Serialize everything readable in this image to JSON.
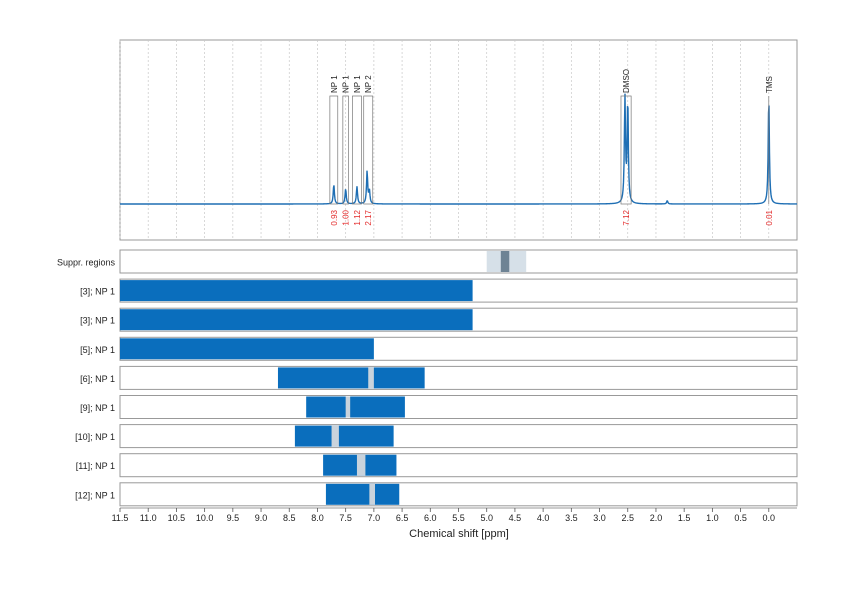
{
  "colors": {
    "spectrum": "#1f6fb4",
    "bar": "#0a6ebd",
    "integral": "#e32b2b",
    "suppr_light": "#d6e0e8",
    "suppr_dark": "#6e8394",
    "gap": "#c9d3dc",
    "frame": "#999999"
  },
  "chart_data": {
    "type": "nmr-spectrum-with-ranges",
    "xlabel": "Chemical shift [ppm]",
    "xlim": [
      11.5,
      -0.5
    ],
    "x_reversed": true,
    "ticks": [
      11.5,
      11.0,
      10.5,
      10.0,
      9.5,
      9.0,
      8.5,
      8.0,
      7.5,
      7.0,
      6.5,
      6.0,
      5.5,
      5.0,
      4.5,
      4.0,
      3.5,
      3.0,
      2.5,
      2.0,
      1.5,
      1.0,
      0.5,
      0.0
    ],
    "tick_labels": [
      "11.5",
      "11.0",
      "10.5",
      "10.0",
      "9.5",
      "9.0",
      "8.5",
      "8.0",
      "7.5",
      "7.0",
      "6.5",
      "6.0",
      "5.5",
      "5.0",
      "4.5",
      "4.0",
      "3.5",
      "3.0",
      "2.5",
      "2.0",
      "1.5",
      "1.0",
      "0.5",
      "0.0"
    ],
    "spectrum": {
      "peaks": [
        {
          "ppm": 7.71,
          "height": 0.18
        },
        {
          "ppm": 7.5,
          "height": 0.14
        },
        {
          "ppm": 7.3,
          "height": 0.16
        },
        {
          "ppm": 7.12,
          "height": 0.3
        },
        {
          "ppm": 7.08,
          "height": 0.12
        },
        {
          "ppm": 2.55,
          "height": 0.96
        },
        {
          "ppm": 2.5,
          "height": 0.94
        },
        {
          "ppm": 1.8,
          "height": 0.03
        },
        {
          "ppm": 0.0,
          "height": 0.98
        }
      ],
      "annotations": [
        {
          "label": "NP 1",
          "from": 7.78,
          "to": 7.64,
          "integral": "0.93"
        },
        {
          "label": "NP 1",
          "from": 7.55,
          "to": 7.45,
          "integral": "1.00"
        },
        {
          "label": "NP 1",
          "from": 7.38,
          "to": 7.22,
          "integral": "1.12"
        },
        {
          "label": "NP 2",
          "from": 7.18,
          "to": 7.02,
          "integral": "2.17"
        },
        {
          "label": "DMSO",
          "from": 2.62,
          "to": 2.44,
          "integral": "7.12"
        },
        {
          "label": "TMS",
          "from": 0.02,
          "to": -0.02,
          "integral": "0.01"
        }
      ]
    },
    "rows": [
      {
        "label": "Suppr. regions",
        "type": "suppression",
        "outer": [
          5.0,
          4.3
        ],
        "inner": [
          4.75,
          4.6
        ]
      },
      {
        "label": "[3]; NP 1",
        "type": "range",
        "from": 11.5,
        "to": 5.25,
        "gap": null
      },
      {
        "label": "[3]; NP 1",
        "type": "range",
        "from": 11.5,
        "to": 5.25,
        "gap": null
      },
      {
        "label": "[5]; NP 1",
        "type": "range",
        "from": 11.5,
        "to": 7.0,
        "gap": null
      },
      {
        "label": "[6]; NP 1",
        "type": "range",
        "from": 8.7,
        "to": 6.1,
        "gap": [
          7.1,
          7.0
        ]
      },
      {
        "label": "[9]; NP 1",
        "type": "range",
        "from": 8.2,
        "to": 6.45,
        "gap": [
          7.5,
          7.42
        ]
      },
      {
        "label": "[10]; NP 1",
        "type": "range",
        "from": 8.4,
        "to": 6.65,
        "gap": [
          7.75,
          7.62
        ]
      },
      {
        "label": "[11]; NP 1",
        "type": "range",
        "from": 7.9,
        "to": 6.6,
        "gap": [
          7.3,
          7.15
        ]
      },
      {
        "label": "[12]; NP 1",
        "type": "range",
        "from": 7.85,
        "to": 6.55,
        "gap": [
          7.08,
          6.98
        ]
      }
    ]
  }
}
